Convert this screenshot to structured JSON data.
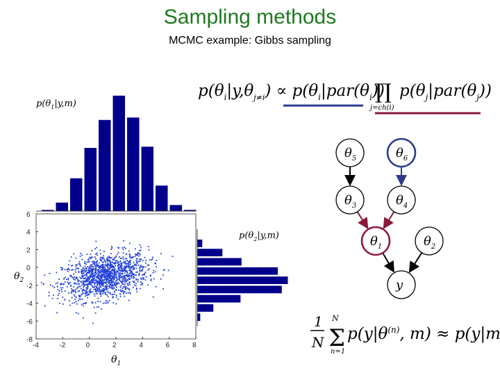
{
  "slide": {
    "title": "Sampling methods",
    "subtitle": "MCMC example: Gibbs sampling"
  },
  "equations": {
    "conditional": "p(θi|y, θj≠i) ∝ p(θi|par(θi)) ∏ p(θj|par(θj))",
    "product_index": "j=ch(i)",
    "average": "(1/N) Σ p(y|θ(n), m) ≈ p(y|m)",
    "sum_upper": "N",
    "sum_lower": "n=1"
  },
  "graph": {
    "nodes": [
      {
        "id": "theta5",
        "label": "θ5",
        "base": "θ",
        "sub": "5",
        "border": "#000000"
      },
      {
        "id": "theta6",
        "label": "θ6",
        "base": "θ",
        "sub": "6",
        "border": "#2b3a8c"
      },
      {
        "id": "theta3",
        "label": "θ3",
        "base": "θ",
        "sub": "3",
        "border": "#000000"
      },
      {
        "id": "theta4",
        "label": "θ4",
        "base": "θ",
        "sub": "4",
        "border": "#000000"
      },
      {
        "id": "theta1",
        "label": "θ1",
        "base": "θ",
        "sub": "1",
        "border": "#8b1a3a"
      },
      {
        "id": "theta2",
        "label": "θ2",
        "base": "θ",
        "sub": "2",
        "border": "#000000"
      },
      {
        "id": "y",
        "label": "y",
        "base": "y",
        "sub": "",
        "border": "#000000"
      }
    ],
    "edges": [
      {
        "from": "theta5",
        "to": "theta3",
        "color": "#000000"
      },
      {
        "from": "theta6",
        "to": "theta4",
        "color": "#2b3a8c"
      },
      {
        "from": "theta3",
        "to": "theta1",
        "color": "#8b1a3a"
      },
      {
        "from": "theta4",
        "to": "theta1",
        "color": "#8b1a3a"
      },
      {
        "from": "theta1",
        "to": "y",
        "color": "#000000"
      },
      {
        "from": "theta2",
        "to": "y",
        "color": "#000000"
      }
    ],
    "markers": {
      "prior_color": "#2b3a8c",
      "children_color": "#8b1a3a"
    }
  },
  "chart_data": [
    {
      "type": "bar",
      "name_label": "p(θ1|y,m)",
      "series_color": "#00008b",
      "categories": [
        -3,
        -2,
        -1,
        0,
        1,
        2,
        3,
        4,
        5,
        6,
        7
      ],
      "values": [
        0.01,
        0.07,
        0.27,
        0.52,
        0.75,
        0.95,
        0.77,
        0.53,
        0.21,
        0.05,
        0.01
      ]
    },
    {
      "type": "bar",
      "orientation": "horizontal",
      "name_label": "p(θ2|y,m)",
      "series_color": "#00008b",
      "categories": [
        1,
        0.5,
        0,
        -0.5,
        -1,
        -1.5,
        -2,
        -2.5,
        -3
      ],
      "values": [
        0.05,
        0.25,
        0.44,
        0.8,
        0.9,
        0.84,
        0.43,
        0.16,
        0.03
      ]
    },
    {
      "type": "scatter",
      "xlabel": "θ1",
      "ylabel": "θ2",
      "xlim": [
        -4,
        8
      ],
      "ylim": [
        -8,
        6
      ],
      "x_ticks": [
        "-4",
        "-2",
        "0",
        "2",
        "4",
        "6",
        "8"
      ],
      "y_ticks": [
        "6",
        "4",
        "2",
        "0",
        "-2",
        "-4",
        "-6",
        "-8"
      ],
      "series_color": "#1f3fd8",
      "grid": false
    }
  ]
}
